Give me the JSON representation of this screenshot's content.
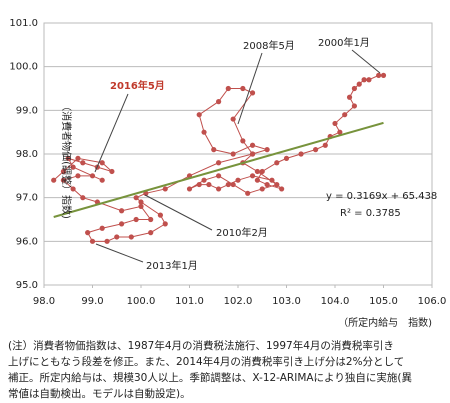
{
  "chart_data": {
    "type": "scatter",
    "y_label": "（消費者物価(調整）指数)",
    "x_label": "（所定内給与　指数)",
    "xlim": [
      98,
      106
    ],
    "xticks": [
      {
        "value": 98,
        "label": "98.0"
      },
      {
        "value": 99,
        "label": "99.0"
      },
      {
        "value": 100,
        "label": "100.0"
      },
      {
        "value": 101,
        "label": "101.0"
      },
      {
        "value": 102,
        "label": "102.0"
      },
      {
        "value": 103,
        "label": "103.0"
      },
      {
        "value": 104,
        "label": "104.0"
      },
      {
        "value": 105,
        "label": "105.0"
      },
      {
        "value": 106,
        "label": "106.0"
      }
    ],
    "ylim": [
      95,
      101
    ],
    "yticks": [
      {
        "value": 95,
        "label": "95.0"
      },
      {
        "value": 96,
        "label": "96.0"
      },
      {
        "value": 97,
        "label": "97.0"
      },
      {
        "value": 98,
        "label": "98.0"
      },
      {
        "value": 99,
        "label": "99.0"
      },
      {
        "value": 100,
        "label": "100.0"
      },
      {
        "value": 101,
        "label": "101.0"
      }
    ],
    "grid": true,
    "series": [
      {
        "color": "#c0504d",
        "x": [
          105.0,
          104.9,
          104.7,
          104.6,
          104.5,
          104.4,
          104.3,
          104.4,
          104.2,
          104.0,
          104.1,
          103.9,
          103.8,
          103.6,
          103.3,
          103.0,
          102.8,
          102.5,
          102.4,
          102.6,
          102.9,
          102.7,
          102.3,
          102.0,
          101.8,
          101.6,
          101.4,
          101.2,
          101.0,
          101.3,
          101.6,
          101.9,
          102.2,
          102.5,
          102.8,
          102.4,
          102.1,
          102.3,
          102.6,
          102.3,
          101.9,
          101.5,
          101.3,
          101.2,
          101.6,
          101.8,
          102.1,
          102.3,
          101.9,
          102.1,
          102.3,
          101.6,
          101.0,
          100.5,
          100.1,
          99.9,
          100.0,
          100.4,
          100.5,
          100.2,
          99.8,
          99.5,
          99.3,
          99.0,
          98.9,
          99.2,
          99.6,
          99.9,
          100.2,
          100.0,
          99.6,
          99.1,
          98.8,
          98.6,
          98.4,
          98.7,
          99.0,
          99.2,
          98.6,
          98.5,
          98.8,
          99.1,
          99.4,
          99.2,
          98.7,
          98.4,
          98.2
        ],
        "y": [
          99.8,
          99.8,
          99.7,
          99.7,
          99.6,
          99.5,
          99.3,
          99.1,
          98.9,
          98.7,
          98.5,
          98.4,
          98.2,
          98.1,
          98.0,
          97.9,
          97.8,
          97.6,
          97.4,
          97.3,
          97.2,
          97.4,
          97.5,
          97.4,
          97.3,
          97.2,
          97.3,
          97.3,
          97.2,
          97.4,
          97.5,
          97.3,
          97.1,
          97.2,
          97.3,
          97.6,
          97.8,
          98.0,
          98.1,
          98.2,
          98.0,
          98.1,
          98.5,
          98.9,
          99.2,
          99.5,
          99.5,
          99.4,
          98.8,
          98.3,
          98.0,
          97.8,
          97.5,
          97.2,
          97.1,
          97.0,
          96.9,
          96.6,
          96.4,
          96.2,
          96.1,
          96.1,
          96.0,
          96.0,
          96.2,
          96.3,
          96.4,
          96.5,
          96.5,
          96.8,
          96.7,
          96.9,
          97.0,
          97.2,
          97.4,
          97.5,
          97.5,
          97.4,
          97.7,
          97.9,
          97.8,
          97.7,
          97.6,
          97.8,
          97.9,
          97.6,
          97.4
        ]
      }
    ],
    "trendline": {
      "color": "#77933c",
      "x": [
        98.2,
        105.0
      ],
      "slope": 0.3169,
      "intercept": 65.438
    },
    "equation": "y = 0.3169x + 65.438",
    "r_squared": "R² = 0.3785",
    "annotations": [
      "2008年5月",
      "2000年1月",
      "2016年5月",
      "2010年2月",
      "2013年1月"
    ]
  },
  "note": [
    "(注）消費者物価指数は、1987年4月の消費税法施行、1997年4月の消費税率引き",
    "上げにともなう段差を修正。また、2014年4月の消費税率引き上げ分は2%分として",
    "補正。所定内給与は、規模30人以上。季節調整は、X-12-ARIMAにより独自に実施(異",
    "常値は自動検出。モデルは自動設定)。"
  ]
}
